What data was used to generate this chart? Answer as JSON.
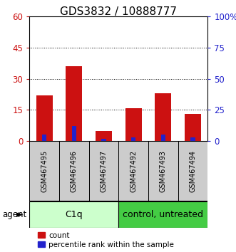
{
  "title": "GDS3832 / 10888777",
  "samples": [
    "GSM467495",
    "GSM467496",
    "GSM467497",
    "GSM467492",
    "GSM467493",
    "GSM467494"
  ],
  "count_values": [
    22,
    36,
    5,
    16,
    23,
    13
  ],
  "percentile_values": [
    5,
    12,
    2,
    3,
    5,
    3
  ],
  "group1_label": "C1q",
  "group1_n": 3,
  "group1_color": "#ccffcc",
  "group2_label": "control, untreated",
  "group2_n": 3,
  "group2_color": "#44cc44",
  "left_yticks": [
    0,
    15,
    30,
    45,
    60
  ],
  "right_yticks": [
    0,
    25,
    50,
    75,
    100
  ],
  "right_yticklabels": [
    "0",
    "25",
    "50",
    "75",
    "100%"
  ],
  "ylim_left": [
    0,
    60
  ],
  "ylim_right": [
    0,
    100
  ],
  "count_color": "#cc1111",
  "percentile_color": "#2222cc",
  "bar_bg_color": "#cccccc",
  "agent_label": "agent",
  "legend_count": "count",
  "legend_percentile": "percentile rank within the sample",
  "title_fontsize": 11,
  "tick_fontsize": 8.5,
  "sample_fontsize": 7,
  "group_fontsize": 9,
  "legend_fontsize": 7.5
}
